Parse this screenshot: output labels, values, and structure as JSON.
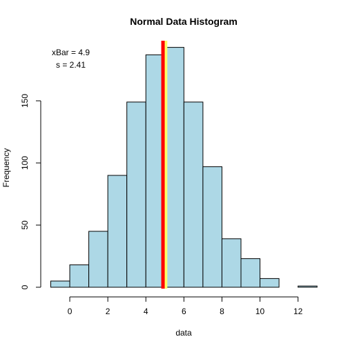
{
  "chart_data": {
    "type": "bar",
    "title": "Normal Data Histogram",
    "xlabel": "data",
    "ylabel": "Frequency",
    "bin_width": 1,
    "bin_starts": [
      -1,
      0,
      1,
      2,
      3,
      4,
      5,
      6,
      7,
      8,
      9,
      10,
      11,
      12
    ],
    "values": [
      5,
      18,
      45,
      90,
      149,
      187,
      193,
      149,
      97,
      39,
      23,
      7,
      0,
      1
    ],
    "xlim": [
      -1,
      13
    ],
    "ylim": [
      0,
      195
    ],
    "x_ticks": [
      0,
      2,
      4,
      6,
      8,
      10,
      12
    ],
    "y_ticks": [
      0,
      50,
      100,
      150
    ],
    "mean_line": {
      "x": 4.9,
      "color": "#ff0000"
    },
    "median_line": {
      "x": 5.0,
      "color": "#ffff66"
    },
    "annotations": {
      "line1": "xBar =  4.9",
      "line2": "s =  2.41"
    },
    "colors": {
      "bar_fill": "#add8e6"
    },
    "grid": false
  }
}
